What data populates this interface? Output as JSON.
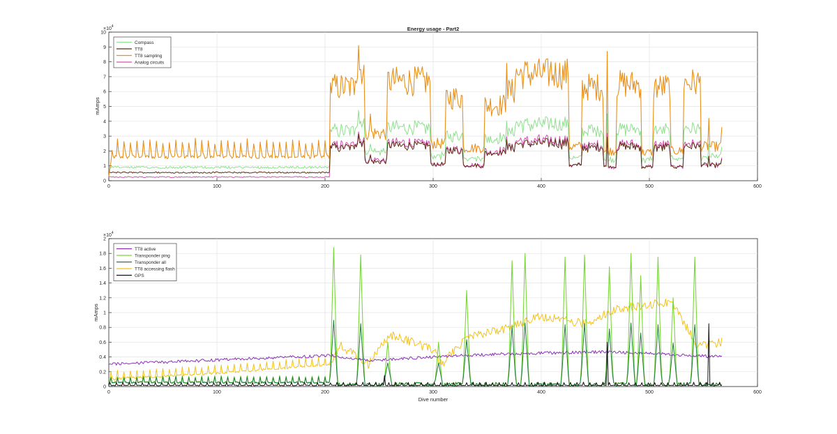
{
  "figure": {
    "title": "Energy usage - Part2",
    "xlabel_bottom": "Dive number"
  },
  "chart_data": [
    {
      "type": "line",
      "title": "Energy usage - Part2",
      "xlabel": "",
      "ylabel": "mAmps",
      "xlim": [
        0,
        600
      ],
      "ylim": [
        0,
        100000
      ],
      "x_ticks": [
        "0",
        "100",
        "200",
        "300",
        "400",
        "500",
        "600"
      ],
      "y_ticks": [
        "0",
        "1",
        "2",
        "3",
        "4",
        "5",
        "6",
        "7",
        "8",
        "9",
        "10"
      ],
      "y_exponent": "×10",
      "y_exponent_power": "4",
      "grid": true,
      "legend_position": "top-left",
      "series": [
        {
          "name": "Compass",
          "color": "#8fe08f",
          "kind": "compass"
        },
        {
          "name": "TT8",
          "color": "#5a3010",
          "kind": "tt8"
        },
        {
          "name": "TT8 sampling",
          "color": "#e8901a",
          "kind": "sampling"
        },
        {
          "name": "Analog circuits",
          "color": "#d84fb4",
          "kind": "analog"
        }
      ],
      "segments": [
        [
          0,
          205,
          1.6,
          0.22,
          0.12
        ],
        [
          205,
          228,
          6.3,
          0.3,
          0.2
        ],
        [
          228,
          237,
          7.5,
          0.3,
          0.2
        ],
        [
          237,
          258,
          3.2,
          0.3,
          0.3
        ],
        [
          258,
          298,
          6.7,
          0.3,
          0.2
        ],
        [
          298,
          312,
          2.5,
          0.3,
          0.15
        ],
        [
          312,
          328,
          5.6,
          0.3,
          0.2
        ],
        [
          328,
          348,
          2.2,
          0.3,
          0.15
        ],
        [
          348,
          368,
          5.1,
          0.3,
          0.2
        ],
        [
          368,
          376,
          6.0,
          0.3,
          0.2
        ],
        [
          376,
          426,
          7.2,
          0.3,
          0.2
        ],
        [
          426,
          438,
          2.3,
          0.3,
          0.15
        ],
        [
          438,
          458,
          6.3,
          0.3,
          0.2
        ],
        [
          458,
          470,
          2.0,
          0.3,
          0.15
        ],
        [
          470,
          493,
          6.5,
          0.3,
          0.2
        ],
        [
          493,
          504,
          1.9,
          0.3,
          0.15
        ],
        [
          504,
          520,
          6.3,
          0.3,
          0.2
        ],
        [
          520,
          532,
          2.0,
          0.3,
          0.15
        ],
        [
          532,
          548,
          6.6,
          0.3,
          0.2
        ],
        [
          548,
          567,
          2.3,
          0.3,
          0.2
        ]
      ],
      "peaks": [
        [
          231,
          9.1
        ],
        [
          242,
          4.5
        ],
        [
          262,
          7.1
        ],
        [
          368,
          7.9
        ],
        [
          409,
          8.0
        ],
        [
          461,
          8.7
        ],
        [
          555,
          4.2
        ],
        [
          567,
          3.6
        ]
      ]
    },
    {
      "type": "line",
      "title": "",
      "xlabel": "Dive number",
      "ylabel": "mAmps",
      "xlim": [
        0,
        600
      ],
      "ylim": [
        0,
        20000
      ],
      "x_ticks": [
        "0",
        "100",
        "200",
        "300",
        "400",
        "500",
        "600"
      ],
      "y_ticks": [
        "0",
        "0.2",
        "0.4",
        "0.6",
        "0.8",
        "1",
        "1.2",
        "1.4",
        "1.6",
        "1.8",
        "2"
      ],
      "y_exponent": "×10",
      "y_exponent_power": "4",
      "grid": true,
      "legend_position": "top-left",
      "series": [
        {
          "name": "TT8 active",
          "color": "#8a2fb8"
        },
        {
          "name": "Transponder ping",
          "color": "#7ad63a"
        },
        {
          "name": "Transponder all",
          "color": "#1e7d3a"
        },
        {
          "name": "TT8 accessing flash",
          "color": "#f2c21c"
        },
        {
          "name": "GPS",
          "color": "#111111"
        }
      ],
      "transponder_spikes": [
        [
          208,
          1.88
        ],
        [
          233,
          1.78
        ],
        [
          258,
          0.6
        ],
        [
          305,
          0.6
        ],
        [
          331,
          1.3
        ],
        [
          373,
          1.7
        ],
        [
          385,
          1.8
        ],
        [
          422,
          1.75
        ],
        [
          440,
          1.78
        ],
        [
          463,
          1.62
        ],
        [
          483,
          1.8
        ],
        [
          492,
          1.5
        ],
        [
          508,
          1.75
        ],
        [
          522,
          1.2
        ],
        [
          542,
          1.75
        ]
      ],
      "transponder_baseline": 0.1,
      "active_levels": [
        [
          0,
          0.3
        ],
        [
          205,
          0.42
        ],
        [
          240,
          0.35
        ],
        [
          300,
          0.4
        ],
        [
          360,
          0.44
        ],
        [
          460,
          0.47
        ],
        [
          500,
          0.45
        ],
        [
          567,
          0.4
        ]
      ],
      "flash_levels": [
        [
          0,
          0.1
        ],
        [
          100,
          0.18
        ],
        [
          205,
          0.3
        ],
        [
          215,
          0.55
        ],
        [
          240,
          0.3
        ],
        [
          260,
          0.7
        ],
        [
          300,
          0.5
        ],
        [
          308,
          0.3
        ],
        [
          330,
          0.65
        ],
        [
          370,
          0.8
        ],
        [
          400,
          0.95
        ],
        [
          440,
          0.85
        ],
        [
          470,
          1.05
        ],
        [
          520,
          1.15
        ],
        [
          545,
          0.55
        ],
        [
          567,
          0.6
        ]
      ],
      "gps_spikes": [
        [
          255,
          0.15
        ],
        [
          461,
          0.6
        ],
        [
          555,
          0.85
        ]
      ]
    }
  ]
}
